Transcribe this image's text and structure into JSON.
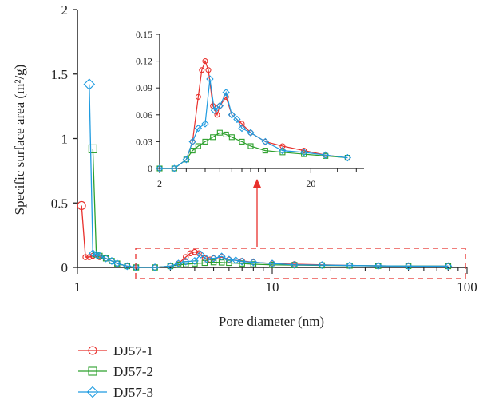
{
  "chart_data": [
    {
      "type": "line",
      "xlabel": "Pore diameter (nm)",
      "ylabel": "Specific surface area (m²/g)",
      "x_scale": "log",
      "xlim": [
        1,
        100
      ],
      "ylim": [
        0,
        2
      ],
      "xticks": [
        "1",
        "10",
        "100"
      ],
      "yticks": [
        "0",
        "0.5",
        "1",
        "1.5",
        "2"
      ],
      "legend": "bottom-left",
      "series": [
        {
          "name": "DJ57-1",
          "color": "#e8302c",
          "marker": "circle",
          "points": [
            [
              1.05,
              0.48
            ],
            [
              1.1,
              0.08
            ],
            [
              1.15,
              0.08
            ],
            [
              1.2,
              0.09
            ],
            [
              1.3,
              0.08
            ],
            [
              1.4,
              0.07
            ],
            [
              1.5,
              0.05
            ],
            [
              1.6,
              0.03
            ],
            [
              1.8,
              0.01
            ],
            [
              2.0,
              0.0
            ],
            [
              2.5,
              0.0
            ],
            [
              3.0,
              0.01
            ],
            [
              3.3,
              0.03
            ],
            [
              3.6,
              0.08
            ],
            [
              3.8,
              0.11
            ],
            [
              4.0,
              0.12
            ],
            [
              4.2,
              0.11
            ],
            [
              4.5,
              0.07
            ],
            [
              4.8,
              0.06
            ],
            [
              5.0,
              0.07
            ],
            [
              5.5,
              0.08
            ],
            [
              6.0,
              0.06
            ],
            [
              7.0,
              0.05
            ],
            [
              8.0,
              0.04
            ],
            [
              10.0,
              0.03
            ],
            [
              13.0,
              0.025
            ],
            [
              18.0,
              0.02
            ],
            [
              25.0,
              0.015
            ],
            [
              35.0,
              0.012
            ],
            [
              50.0,
              0.01
            ],
            [
              80.0,
              0.01
            ]
          ]
        },
        {
          "name": "DJ57-2",
          "color": "#2ca02c",
          "marker": "square",
          "points": [
            [
              1.2,
              0.92
            ],
            [
              1.25,
              0.1
            ],
            [
              1.3,
              0.09
            ],
            [
              1.4,
              0.07
            ],
            [
              1.5,
              0.05
            ],
            [
              1.6,
              0.03
            ],
            [
              1.8,
              0.01
            ],
            [
              2.0,
              0.0
            ],
            [
              2.5,
              0.0
            ],
            [
              3.0,
              0.01
            ],
            [
              3.3,
              0.02
            ],
            [
              3.6,
              0.025
            ],
            [
              4.0,
              0.03
            ],
            [
              4.5,
              0.035
            ],
            [
              5.0,
              0.04
            ],
            [
              5.5,
              0.038
            ],
            [
              6.0,
              0.035
            ],
            [
              7.0,
              0.03
            ],
            [
              8.0,
              0.025
            ],
            [
              10.0,
              0.02
            ],
            [
              13.0,
              0.018
            ],
            [
              18.0,
              0.016
            ],
            [
              25.0,
              0.014
            ],
            [
              35.0,
              0.012
            ],
            [
              50.0,
              0.011
            ],
            [
              80.0,
              0.01
            ]
          ]
        },
        {
          "name": "DJ57-3",
          "color": "#1e9be0",
          "marker": "diamond",
          "points": [
            [
              1.15,
              1.42
            ],
            [
              1.2,
              0.11
            ],
            [
              1.25,
              0.1
            ],
            [
              1.3,
              0.09
            ],
            [
              1.4,
              0.07
            ],
            [
              1.5,
              0.05
            ],
            [
              1.6,
              0.03
            ],
            [
              1.8,
              0.01
            ],
            [
              2.0,
              0.0
            ],
            [
              2.5,
              0.0
            ],
            [
              3.0,
              0.01
            ],
            [
              3.3,
              0.03
            ],
            [
              3.6,
              0.045
            ],
            [
              4.0,
              0.05
            ],
            [
              4.3,
              0.1
            ],
            [
              4.6,
              0.065
            ],
            [
              5.0,
              0.07
            ],
            [
              5.5,
              0.085
            ],
            [
              6.0,
              0.06
            ],
            [
              6.5,
              0.055
            ],
            [
              7.0,
              0.045
            ],
            [
              8.0,
              0.04
            ],
            [
              10.0,
              0.03
            ],
            [
              13.0,
              0.02
            ],
            [
              18.0,
              0.018
            ],
            [
              25.0,
              0.015
            ],
            [
              35.0,
              0.012
            ],
            [
              50.0,
              0.01
            ],
            [
              80.0,
              0.01
            ]
          ]
        }
      ]
    },
    {
      "type": "line",
      "title": "",
      "x_scale": "log",
      "xlim": [
        2,
        45
      ],
      "ylim": [
        0,
        0.15
      ],
      "xticks": [
        "2",
        "20"
      ],
      "yticks": [
        "0",
        "0.03",
        "0.06",
        "0.09",
        "0.12",
        "0.15"
      ],
      "series_ref": "same as main chart (2–45 nm range)"
    }
  ]
}
